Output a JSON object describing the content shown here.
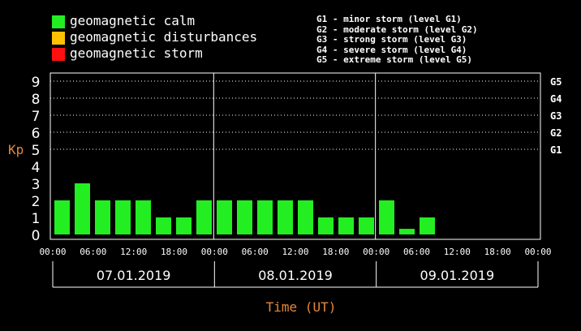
{
  "legend": [
    {
      "label": "geomagnetic calm",
      "color": "#22ee22"
    },
    {
      "label": "geomagnetic disturbances",
      "color": "#ffc000"
    },
    {
      "label": "geomagnetic storm",
      "color": "#ff1010"
    }
  ],
  "storm_scale": [
    "G1 - minor storm (level G1)",
    "G2 - moderate storm (level G2)",
    "G3 - strong storm (level G3)",
    "G4 - severe storm (level G4)",
    "G5 - extreme storm (level G5)"
  ],
  "chart_data": {
    "type": "bar",
    "ylabel": "Kp",
    "xlabel": "Time (UT)",
    "ylim": [
      0,
      9
    ],
    "yticks": [
      "0",
      "1",
      "2",
      "3",
      "4",
      "5",
      "6",
      "7",
      "8",
      "9"
    ],
    "right_labels": [
      {
        "y": 5,
        "label": "G1"
      },
      {
        "y": 6,
        "label": "G2"
      },
      {
        "y": 7,
        "label": "G3"
      },
      {
        "y": 8,
        "label": "G4"
      },
      {
        "y": 9,
        "label": "G5"
      }
    ],
    "xtick_labels": [
      "00:00",
      "06:00",
      "12:00",
      "18:00",
      "00:00",
      "06:00",
      "12:00",
      "18:00",
      "00:00",
      "06:00",
      "12:00",
      "18:00",
      "00:00"
    ],
    "days": [
      "07.01.2019",
      "08.01.2019",
      "09.01.2019"
    ],
    "grid": "dotted horizontal at Kp 5-9",
    "bar_color": "#22ee22",
    "values": [
      2,
      3,
      2,
      2,
      2,
      1,
      1,
      2,
      2,
      2,
      2,
      2,
      2,
      1,
      1,
      1,
      2,
      0.33,
      1
    ]
  }
}
